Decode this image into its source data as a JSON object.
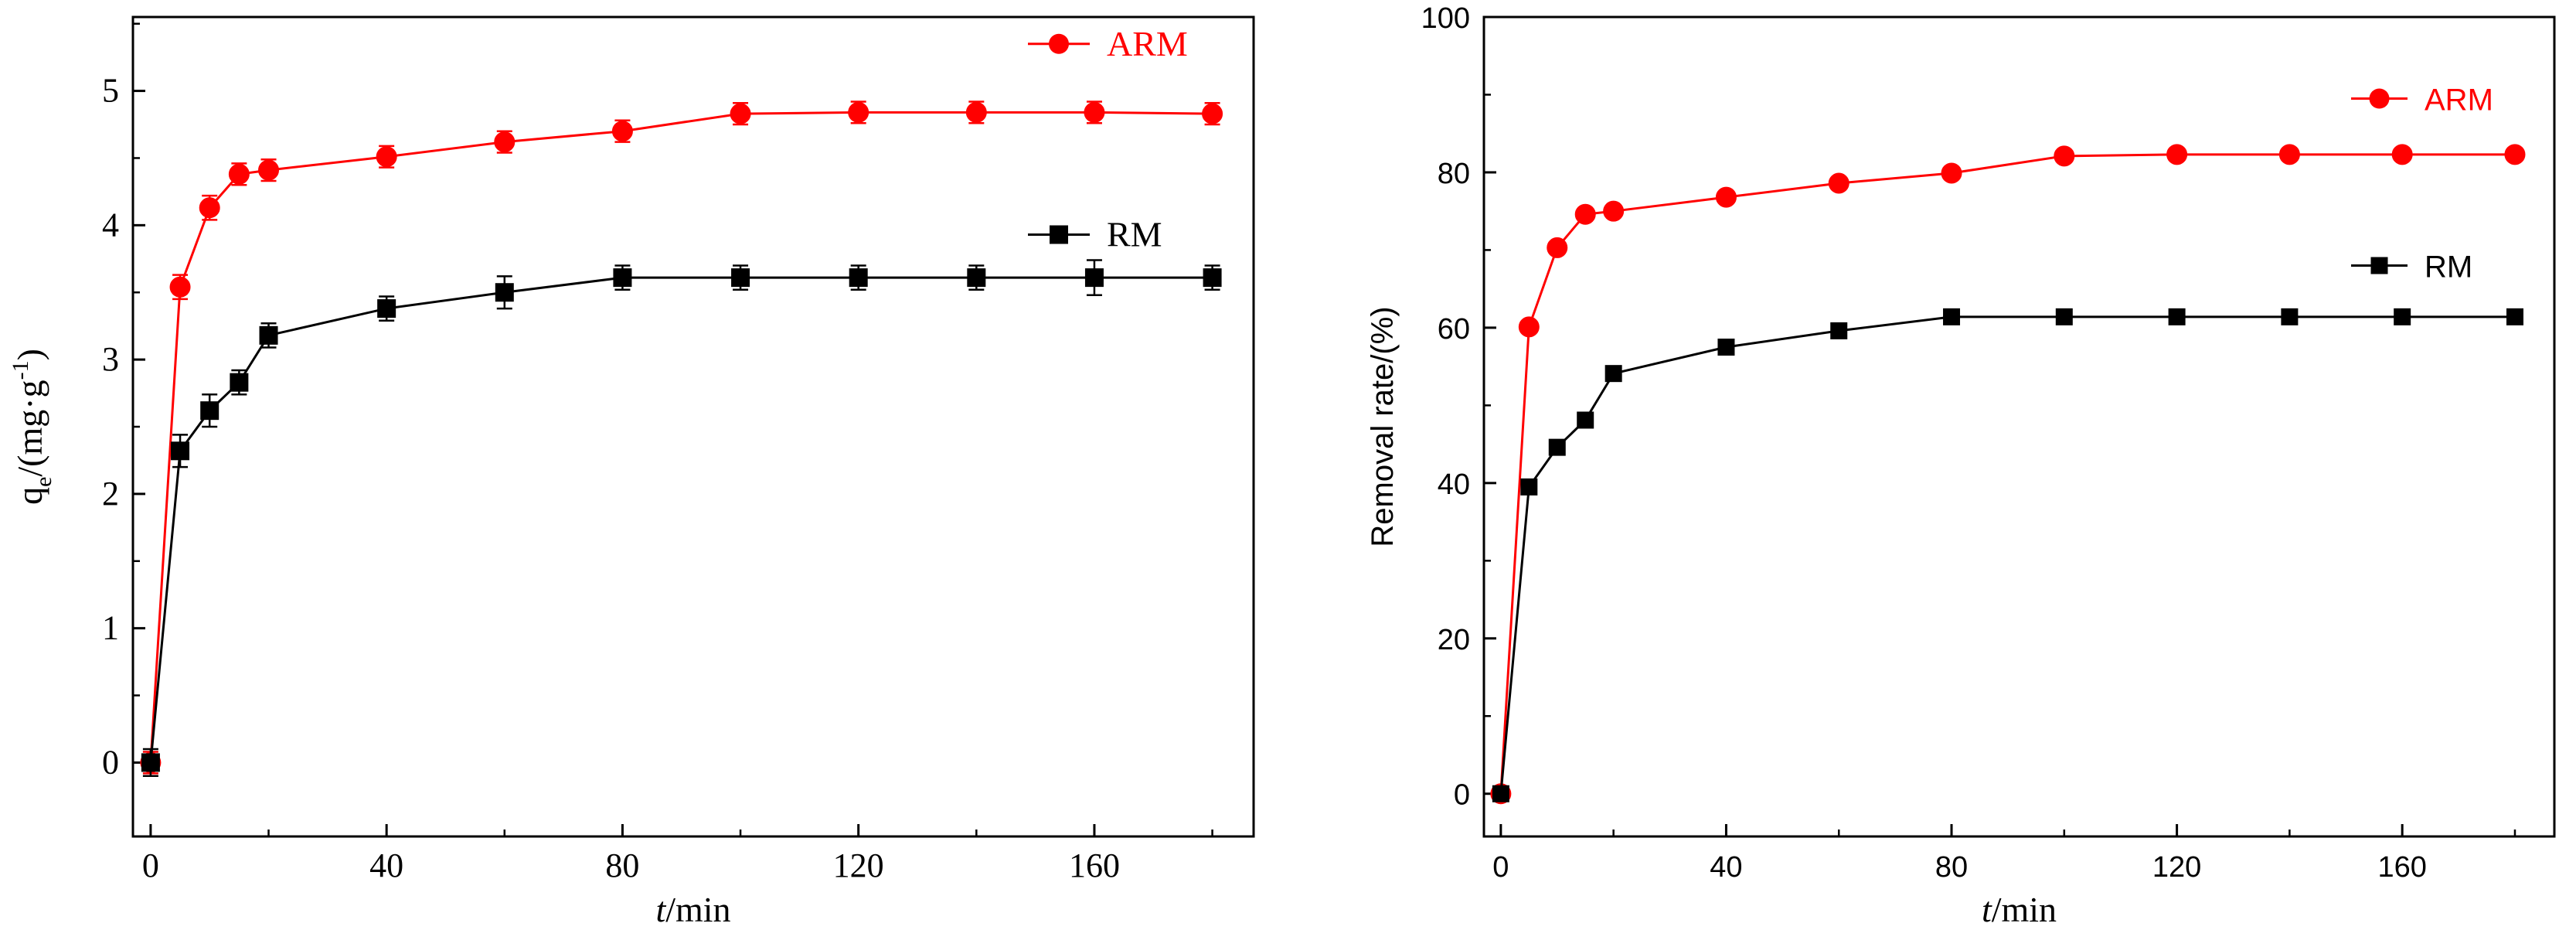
{
  "chart_data": [
    {
      "type": "line",
      "panel": "left",
      "xlabel": {
        "italic": "t",
        "rest": "/min"
      },
      "ylabel": {
        "base": "q",
        "sub": "e",
        "mid": "/(mg·g",
        "sup": "-1",
        "end": ")"
      },
      "xlim": [
        -3,
        187
      ],
      "ylim": [
        -0.55,
        5.55
      ],
      "xticks": [
        0,
        40,
        80,
        120,
        160
      ],
      "xtick_labels": [
        "0",
        "40",
        "80",
        "120",
        "160"
      ],
      "yticks": [
        0,
        1,
        2,
        3,
        4,
        5
      ],
      "ytick_labels": [
        "0",
        "1",
        "2",
        "3",
        "4",
        "5"
      ],
      "error_bars": true,
      "legend_position": "right",
      "series": [
        {
          "name": "ARM",
          "color": "#ff0000",
          "marker": "circle",
          "legend_y": 5.35,
          "x": [
            0,
            5,
            10,
            15,
            20,
            40,
            60,
            80,
            100,
            120,
            140,
            160,
            180
          ],
          "y": [
            0,
            3.54,
            4.13,
            4.38,
            4.41,
            4.51,
            4.62,
            4.7,
            4.83,
            4.84,
            4.84,
            4.84,
            4.83
          ],
          "err": [
            0.08,
            0.09,
            0.09,
            0.08,
            0.08,
            0.08,
            0.08,
            0.08,
            0.08,
            0.08,
            0.08,
            0.08,
            0.08
          ]
        },
        {
          "name": "RM",
          "color": "#000000",
          "marker": "square",
          "legend_y": 3.93,
          "x": [
            0,
            5,
            10,
            15,
            20,
            40,
            60,
            80,
            100,
            120,
            140,
            160,
            180
          ],
          "y": [
            0,
            2.32,
            2.62,
            2.83,
            3.18,
            3.38,
            3.5,
            3.61,
            3.61,
            3.61,
            3.61,
            3.61,
            3.61
          ],
          "err": [
            0.1,
            0.12,
            0.12,
            0.09,
            0.09,
            0.09,
            0.12,
            0.09,
            0.09,
            0.09,
            0.09,
            0.13,
            0.09
          ]
        }
      ]
    },
    {
      "type": "line",
      "panel": "right",
      "xlabel": {
        "italic": "t",
        "rest": "/min"
      },
      "ylabel": "Removal rate/(%)",
      "xlim": [
        -3,
        187
      ],
      "ylim": [
        -5.5,
        100
      ],
      "xticks": [
        0,
        40,
        80,
        120,
        160
      ],
      "xtick_labels": [
        "0",
        "40",
        "80",
        "120",
        "160"
      ],
      "yticks": [
        0,
        20,
        40,
        60,
        80,
        100
      ],
      "ytick_labels": [
        "0",
        "20",
        "40",
        "60",
        "80",
        "100"
      ],
      "error_bars": false,
      "legend_position": "right",
      "series": [
        {
          "name": "ARM",
          "color": "#ff0000",
          "marker": "circle",
          "legend_y": 89.5,
          "x": [
            0,
            5,
            10,
            15,
            20,
            40,
            60,
            80,
            100,
            120,
            140,
            160,
            180
          ],
          "y": [
            0,
            60.1,
            70.3,
            74.6,
            75.0,
            76.8,
            78.6,
            79.9,
            82.1,
            82.3,
            82.3,
            82.3,
            82.3
          ]
        },
        {
          "name": "RM",
          "color": "#000000",
          "marker": "square",
          "legend_y": 68.0,
          "x": [
            0,
            5,
            10,
            15,
            20,
            40,
            60,
            80,
            100,
            120,
            140,
            160,
            180
          ],
          "y": [
            0,
            39.5,
            44.6,
            48.1,
            54.1,
            57.5,
            59.6,
            61.4,
            61.4,
            61.4,
            61.4,
            61.4,
            61.4
          ]
        }
      ]
    }
  ]
}
